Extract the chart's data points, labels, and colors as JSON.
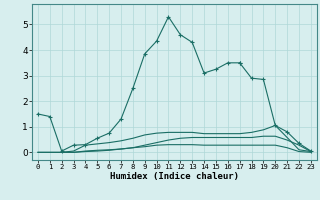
{
  "background_color": "#d7eeee",
  "grid_color": "#afd8d8",
  "line_color": "#1a6e65",
  "xlabel": "Humidex (Indice chaleur)",
  "xlim": [
    -0.5,
    23.5
  ],
  "ylim": [
    -0.3,
    5.8
  ],
  "xticks": [
    0,
    1,
    2,
    3,
    4,
    5,
    6,
    7,
    8,
    9,
    10,
    11,
    12,
    13,
    14,
    15,
    16,
    17,
    18,
    19,
    20,
    21,
    22,
    23
  ],
  "yticks": [
    0,
    1,
    2,
    3,
    4,
    5
  ],
  "line1_x": [
    0,
    1,
    2,
    3,
    4,
    5,
    6,
    7,
    8,
    9,
    10,
    11,
    12,
    13,
    14,
    15,
    16,
    17
  ],
  "line1_y": [
    1.5,
    1.4,
    0.05,
    0.28,
    0.3,
    0.55,
    0.75,
    1.3,
    2.5,
    3.85,
    4.35,
    5.3,
    4.6,
    4.3,
    3.1,
    3.25,
    3.5,
    3.5
  ],
  "line2_x": [
    17,
    18,
    19,
    20,
    21,
    22,
    23
  ],
  "line2_y": [
    3.5,
    2.9,
    2.85,
    1.05,
    0.8,
    0.35,
    0.05
  ],
  "line3_x": [
    0,
    1,
    2,
    3,
    4,
    5,
    6,
    7,
    8,
    9,
    10,
    11,
    12,
    13,
    14,
    15,
    16,
    17,
    18,
    19,
    20,
    21,
    22,
    23
  ],
  "line3_y": [
    0.0,
    0.0,
    0.0,
    0.05,
    0.28,
    0.33,
    0.38,
    0.45,
    0.55,
    0.68,
    0.75,
    0.78,
    0.78,
    0.78,
    0.73,
    0.73,
    0.73,
    0.73,
    0.78,
    0.88,
    1.05,
    0.58,
    0.1,
    0.03
  ],
  "line4_x": [
    0,
    1,
    2,
    3,
    4,
    5,
    6,
    7,
    8,
    9,
    10,
    11,
    12,
    13,
    14,
    15,
    16,
    17,
    18,
    19,
    20,
    21,
    22,
    23
  ],
  "line4_y": [
    0.0,
    0.0,
    0.0,
    0.0,
    0.05,
    0.08,
    0.1,
    0.13,
    0.18,
    0.22,
    0.28,
    0.3,
    0.3,
    0.3,
    0.28,
    0.28,
    0.28,
    0.28,
    0.28,
    0.28,
    0.28,
    0.18,
    0.03,
    0.0
  ],
  "line5_x": [
    2,
    3,
    4,
    5,
    6,
    7,
    8,
    9,
    10,
    11,
    12,
    13,
    14,
    15,
    16,
    17,
    18,
    19,
    20,
    21,
    22,
    23
  ],
  "line5_y": [
    0.0,
    0.0,
    0.03,
    0.05,
    0.08,
    0.13,
    0.18,
    0.28,
    0.38,
    0.48,
    0.55,
    0.58,
    0.58,
    0.58,
    0.58,
    0.58,
    0.58,
    0.63,
    0.63,
    0.48,
    0.28,
    0.03
  ]
}
